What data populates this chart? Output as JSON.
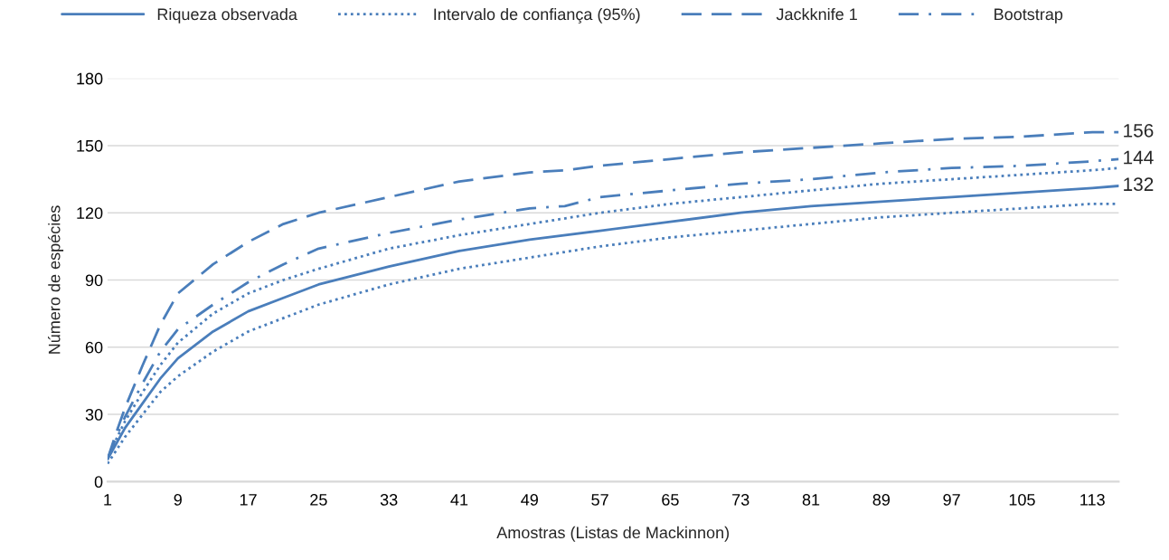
{
  "chart_data": {
    "type": "line",
    "xlabel": "Amostras (Listas de Mackinnon)",
    "ylabel": "Número de espécies",
    "xlim": [
      1,
      116
    ],
    "xticks": [
      1,
      9,
      17,
      25,
      33,
      41,
      49,
      57,
      65,
      73,
      81,
      89,
      97,
      105,
      113
    ],
    "ylim": [
      0,
      180
    ],
    "yticks": [
      0,
      30,
      60,
      90,
      120,
      150,
      180
    ],
    "grid": "y",
    "legend": "top",
    "x": [
      1,
      2,
      3,
      5,
      7,
      9,
      13,
      17,
      21,
      25,
      33,
      41,
      49,
      57,
      65,
      73,
      81,
      89,
      97,
      105,
      113,
      116
    ],
    "series": [
      {
        "name": "Riqueza observada",
        "color": "#4a7ebb",
        "line_style": "solid",
        "values": [
          10,
          17,
          24,
          35,
          46,
          55,
          67,
          76,
          82,
          88,
          96,
          103,
          108,
          112,
          116,
          120,
          123,
          125,
          127,
          129,
          131,
          132
        ],
        "value_labels": [
          null,
          null,
          null,
          null,
          null,
          null,
          null,
          null,
          null,
          null,
          null,
          null,
          null,
          null,
          null,
          null,
          null,
          null,
          null,
          null,
          null,
          "132"
        ]
      },
      {
        "name": "Intervalo de confiança (95%)",
        "color": "#4a7ebb",
        "line_style": "dotted",
        "values": [
          11,
          19,
          27,
          40,
          52,
          62,
          75,
          84,
          90,
          95,
          104,
          110,
          115,
          120,
          124,
          127,
          130,
          133,
          135,
          137,
          139,
          140
        ]
      },
      {
        "color": "#4a7ebb",
        "line_style": "dotted",
        "values": [
          8,
          14,
          20,
          30,
          40,
          47,
          58,
          67,
          73,
          79,
          88,
          95,
          100,
          105,
          109,
          112,
          115,
          118,
          120,
          122,
          124,
          124
        ]
      },
      {
        "name": "Jackknife 1",
        "color": "#4a7ebb",
        "line_style": "dashed",
        "x": [
          1,
          2,
          3,
          5,
          7,
          9,
          13,
          17,
          21,
          25,
          33,
          41,
          49,
          53,
          57,
          65,
          73,
          81,
          89,
          97,
          105,
          113,
          116
        ],
        "values": [
          10,
          22,
          33,
          52,
          70,
          84,
          97,
          107,
          115,
          120,
          127,
          134,
          138,
          139,
          141,
          144,
          147,
          149,
          151,
          153,
          154,
          156,
          156
        ],
        "value_labels": [
          null,
          null,
          null,
          null,
          null,
          null,
          null,
          null,
          null,
          null,
          null,
          null,
          null,
          null,
          null,
          null,
          null,
          null,
          null,
          null,
          null,
          null,
          "156"
        ]
      },
      {
        "name": "Bootstrap",
        "color": "#4a7ebb",
        "line_style": "dashdot",
        "x": [
          1,
          2,
          3,
          5,
          7,
          9,
          13,
          17,
          21,
          25,
          33,
          41,
          49,
          53,
          57,
          65,
          73,
          81,
          89,
          97,
          105,
          113,
          116
        ],
        "values": [
          10,
          20,
          29,
          44,
          58,
          68,
          79,
          89,
          97,
          104,
          111,
          117,
          122,
          123,
          127,
          130,
          133,
          135,
          138,
          140,
          141,
          143,
          144
        ],
        "value_labels": [
          null,
          null,
          null,
          null,
          null,
          null,
          null,
          null,
          null,
          null,
          null,
          null,
          null,
          null,
          null,
          null,
          null,
          null,
          null,
          null,
          null,
          null,
          "144"
        ]
      }
    ]
  }
}
